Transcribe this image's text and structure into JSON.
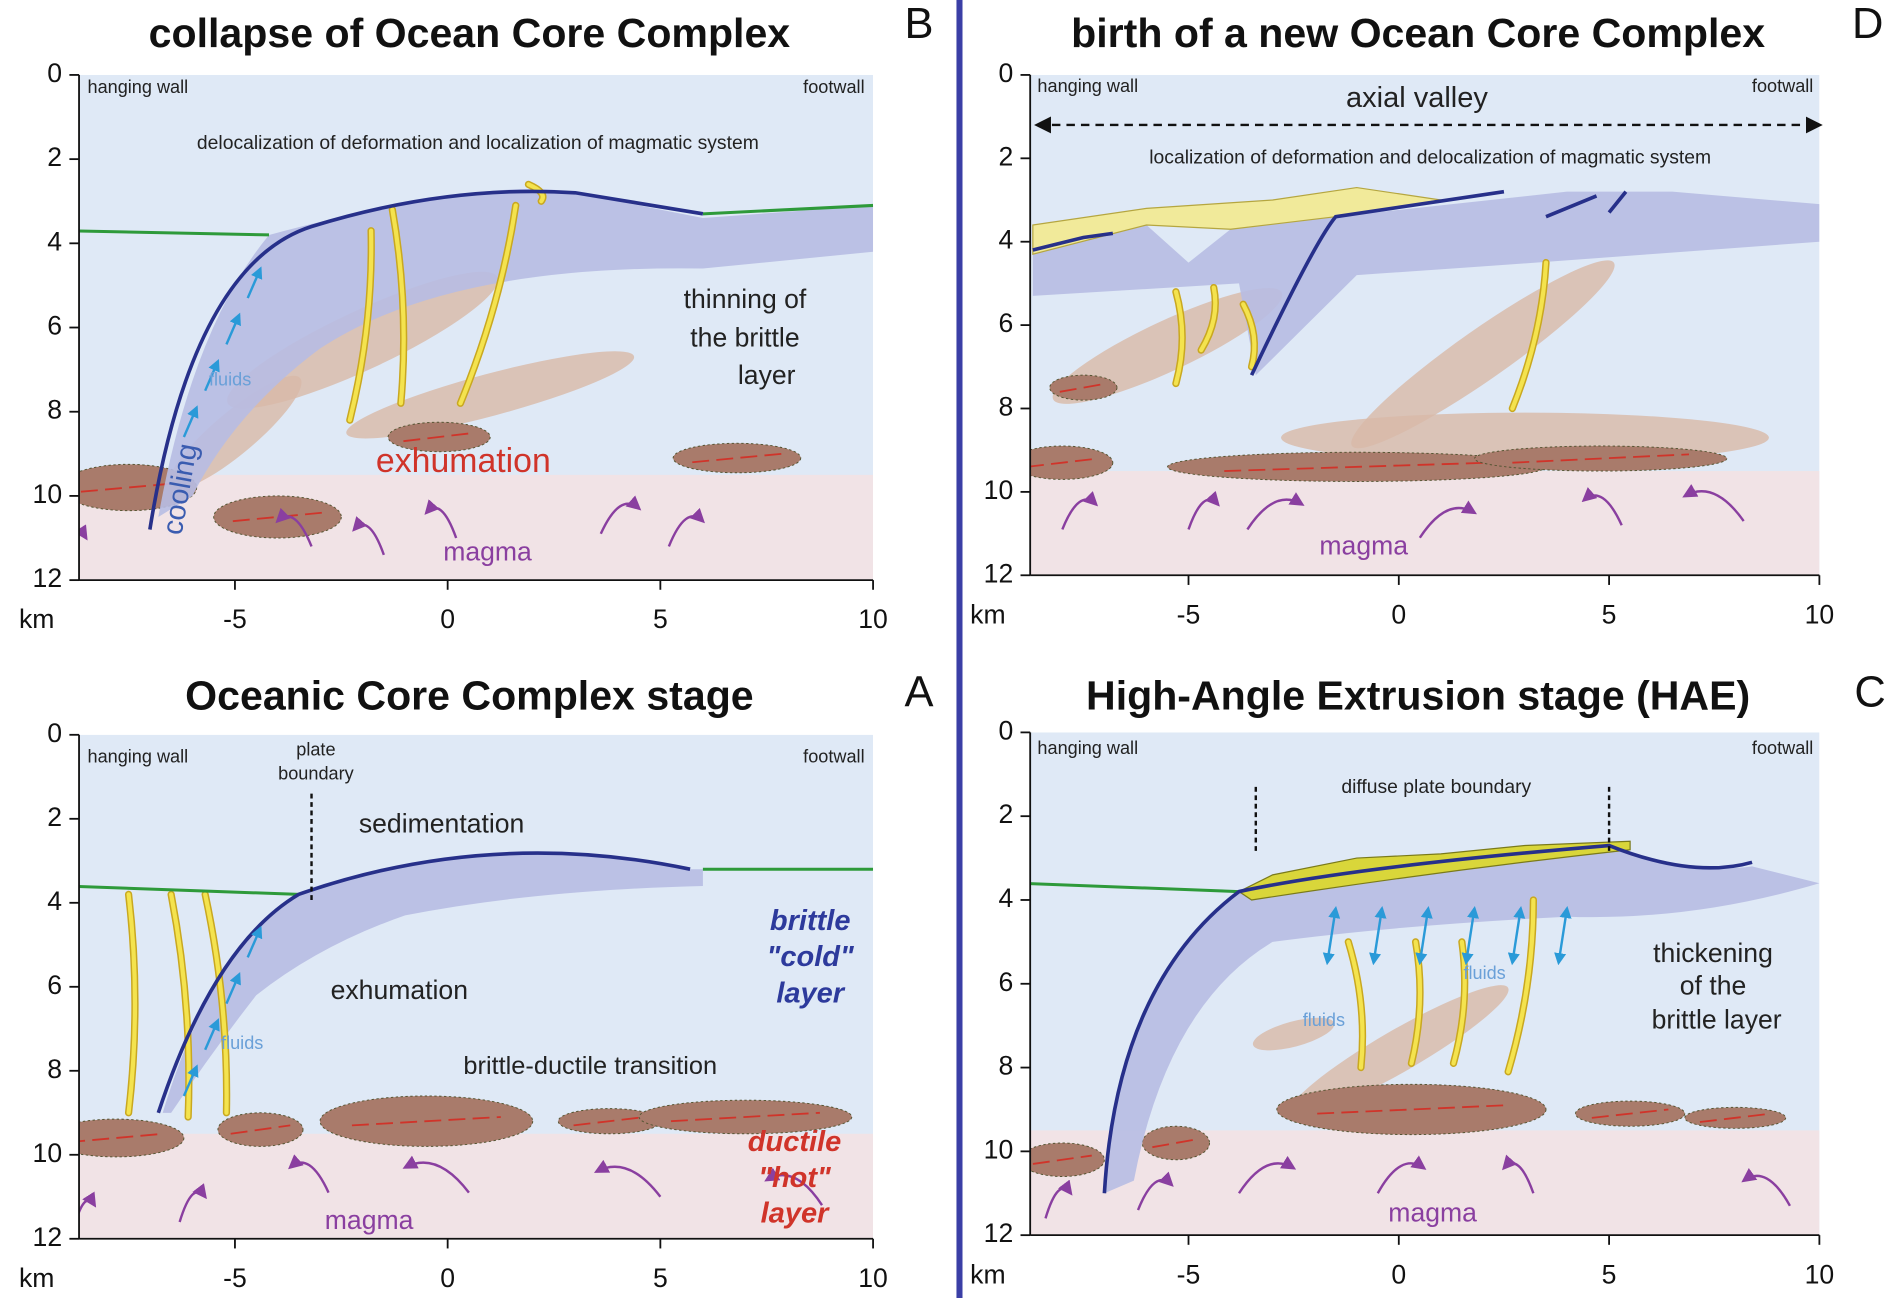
{
  "axis": {
    "depth_ticks": [
      0,
      2,
      4,
      6,
      8,
      10,
      12
    ],
    "distance_ticks": [
      -5,
      0,
      5,
      10
    ],
    "unit": "km"
  },
  "panels": [
    {
      "title": "collapse of Ocean Core Complex",
      "letter": "B",
      "labels": [
        "hanging wall",
        "footwall",
        "delocalization of deformation and localization of magmatic system",
        "thinning of",
        "the brittle",
        "layer",
        "fluids",
        "cooling",
        "exhumation",
        "magma"
      ]
    },
    {
      "title": "birth of a new Ocean Core Complex",
      "letter": "D",
      "labels": [
        "hanging wall",
        "footwall",
        "axial valley",
        "localization of deformation and delocalization of magmatic system",
        "magma"
      ]
    },
    {
      "title": "Oceanic Core Complex stage",
      "letter": "A",
      "labels": [
        "hanging wall",
        "plate",
        "boundary",
        "footwall",
        "sedimentation",
        "exhumation",
        "brittle",
        "\"cold\"",
        "layer",
        "fluids",
        "brittle-ductile transition",
        "ductile",
        "\"hot\"",
        "layer",
        "magma"
      ]
    },
    {
      "title": "High-Angle Extrusion stage (HAE)",
      "letter": "C",
      "labels": [
        "hanging wall",
        "footwall",
        "diffuse plate boundary",
        "fluids",
        "fluids",
        "thickening",
        "of the",
        "brittle layer",
        "magma"
      ]
    }
  ]
}
